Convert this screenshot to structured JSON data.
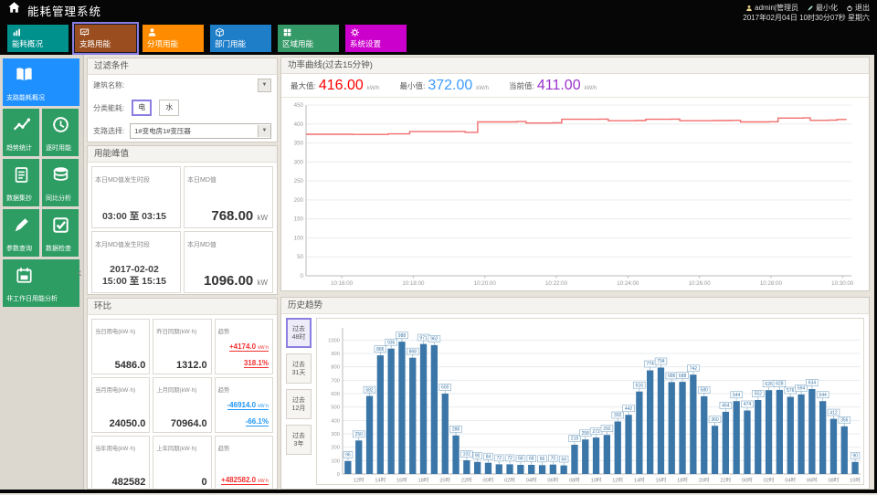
{
  "header": {
    "title": "能耗管理系统",
    "user": "admin|管理员",
    "minimize": "最小化",
    "logout": "退出",
    "datetime": "2017年02月04日 10时30分07秒 星期六"
  },
  "tabs": [
    {
      "name": "tab-energy-overview",
      "label": "能耗概况",
      "color": "#00918D",
      "icon": "bar-chart-icon",
      "selected": false
    },
    {
      "name": "tab-branch-energy",
      "label": "支路用能",
      "color": "#9A4D1E",
      "icon": "trend-board-icon",
      "selected": true
    },
    {
      "name": "tab-subitem-energy",
      "label": "分项用能",
      "color": "#FF8C00",
      "icon": "person-icon",
      "selected": false
    },
    {
      "name": "tab-department-energy",
      "label": "部门用能",
      "color": "#1E7EC8",
      "icon": "cube-icon",
      "selected": false
    },
    {
      "name": "tab-region-energy",
      "label": "区域用能",
      "color": "#339966",
      "icon": "grid-icon",
      "selected": false
    },
    {
      "name": "tab-system-settings",
      "label": "系统设置",
      "color": "#CC00CC",
      "icon": "gear-icon",
      "selected": false
    }
  ],
  "sidebar": {
    "items": [
      {
        "name": "sidebar-item-branch-overview",
        "label": "支路能耗概况",
        "icon": "book-icon",
        "wide": true,
        "selected": true
      },
      {
        "name": "sidebar-item-trend-statistics",
        "label": "趋势统计",
        "icon": "trend-line-icon",
        "wide": false,
        "selected": false
      },
      {
        "name": "sidebar-item-hourly-energy",
        "label": "逐时用能",
        "icon": "clock-icon",
        "wide": false,
        "selected": false
      },
      {
        "name": "sidebar-item-meter-reading",
        "label": "数据集抄",
        "icon": "document-icon",
        "wide": false,
        "selected": false
      },
      {
        "name": "sidebar-item-yoy-analysis",
        "label": "同比分析",
        "icon": "database-icon",
        "wide": false,
        "selected": false
      },
      {
        "name": "sidebar-item-parameter-query",
        "label": "参数查询",
        "icon": "pen-icon",
        "wide": false,
        "selected": false
      },
      {
        "name": "sidebar-item-data-check",
        "label": "数据检查",
        "icon": "check-box-icon",
        "wide": false,
        "selected": false
      },
      {
        "name": "sidebar-item-nonworkday-analysis",
        "label": "非工作日用能分析",
        "icon": "calendar-icon",
        "wide": true,
        "selected": false
      }
    ],
    "collapse_glyph": "‹"
  },
  "filter": {
    "title": "过滤条件",
    "building_label": "建筑名称:",
    "building_value": "",
    "category_label": "分类能耗:",
    "category_options": [
      {
        "label": "电",
        "selected": true
      },
      {
        "label": "水",
        "selected": false
      }
    ],
    "branch_label": "支路选择:",
    "branch_value": "1#变电房1#变压器",
    "dropdown_glyph": "▼"
  },
  "peak": {
    "title": "用能峰值",
    "cards": [
      {
        "label": "本日MD值发生时段",
        "type": "time",
        "lines": [
          "03:00 至 03:15"
        ]
      },
      {
        "label": "本日MD值",
        "type": "value",
        "value": "768.00",
        "unit": "kW"
      },
      {
        "label": "本月MD值发生时段",
        "type": "time",
        "lines": [
          "2017-02-02",
          "15:00 至 15:15"
        ]
      },
      {
        "label": "本月MD值",
        "type": "value",
        "value": "1096.00",
        "unit": "kW"
      }
    ]
  },
  "ring": {
    "title": "环比",
    "rows": [
      [
        {
          "type": "value",
          "label": "当日用电(kW·h)",
          "value": "5486.0"
        },
        {
          "type": "value",
          "label": "昨日同期(kW·h)",
          "value": "1312.0"
        },
        {
          "type": "trend",
          "label": "趋势",
          "lines": [
            {
              "text": "+4174.0",
              "unit": "kW·h",
              "dir": "up"
            },
            {
              "text": "318.1%",
              "unit": "",
              "dir": "up"
            }
          ]
        }
      ],
      [
        {
          "type": "value",
          "label": "当月用电(kW·h)",
          "value": "24050.0"
        },
        {
          "type": "value",
          "label": "上月同期(kW·h)",
          "value": "70964.0"
        },
        {
          "type": "trend",
          "label": "趋势",
          "lines": [
            {
              "text": "-46914.0",
              "unit": "kW·h",
              "dir": "down"
            },
            {
              "text": "-66.1%",
              "unit": "",
              "dir": "down"
            }
          ]
        }
      ],
      [
        {
          "type": "value",
          "label": "当年用电(kW·h)",
          "value": "482582"
        },
        {
          "type": "value",
          "label": "上年同期(kW·h)",
          "value": "0"
        },
        {
          "type": "trend",
          "label": "趋势",
          "lines": [
            {
              "text": "+482582.0",
              "unit": "kW·h",
              "dir": "up"
            }
          ]
        }
      ]
    ]
  },
  "history": {
    "title": "历史趋势",
    "range_buttons": [
      {
        "name": "range-past-48h",
        "lines": [
          "过去",
          "48时"
        ],
        "selected": true
      },
      {
        "name": "range-past-31d",
        "lines": [
          "过去",
          "31天"
        ],
        "selected": false
      },
      {
        "name": "range-past-12m",
        "lines": [
          "过去",
          "12月"
        ],
        "selected": false
      },
      {
        "name": "range-past-3y",
        "lines": [
          "过去",
          "3年"
        ],
        "selected": false
      }
    ]
  },
  "chart_data": [
    {
      "type": "line",
      "title": "功率曲线(过去15分钟)",
      "stats": {
        "max_label": "最大值:",
        "max": "416.00",
        "min_label": "最小值:",
        "min": "372.00",
        "current_label": "当前值:",
        "current": "411.00",
        "unit": "kW/h"
      },
      "line_color": "#F26D6D",
      "ylim": [
        0,
        450
      ],
      "y_tick_step": 50,
      "x_range_minutes": [
        0,
        15.25
      ],
      "x_ticks": {
        "positions": [
          1,
          3,
          5,
          7,
          9,
          11,
          13,
          15
        ],
        "labels": [
          "10:16:00",
          "10:18:00",
          "10:20:00",
          "10:22:00",
          "10:24:00",
          "10:26:00",
          "10:28:00",
          "10:30:00"
        ]
      },
      "grid": true,
      "legend": "none",
      "series": [
        {
          "name": "功率",
          "steps": [
            [
              0,
              373
            ],
            [
              1.3,
              372.5
            ],
            [
              2.3,
              374
            ],
            [
              2.9,
              380
            ],
            [
              4.1,
              380.5
            ],
            [
              4.45,
              378
            ],
            [
              4.8,
              405.5
            ],
            [
              5.9,
              406.5
            ],
            [
              6.15,
              402.5
            ],
            [
              6.9,
              403
            ],
            [
              7.15,
              412.5
            ],
            [
              8.2,
              413
            ],
            [
              8.45,
              408.5
            ],
            [
              9.2,
              409
            ],
            [
              9.5,
              412.5
            ],
            [
              10.2,
              413
            ],
            [
              10.45,
              408.5
            ],
            [
              11.4,
              409
            ],
            [
              11.9,
              409.5
            ],
            [
              12.15,
              405.5
            ],
            [
              12.95,
              406
            ],
            [
              13.2,
              415.5
            ],
            [
              13.9,
              416
            ],
            [
              14.1,
              409.5
            ],
            [
              14.6,
              410
            ],
            [
              14.85,
              412
            ],
            [
              15.1,
              411
            ]
          ]
        }
      ]
    },
    {
      "type": "bar",
      "title": "历史趋势(过去48时)",
      "bar_color": "#3B76A8",
      "label_box_border": "#8FB3CE",
      "ylim": [
        0,
        1050
      ],
      "y_ticks": [
        0,
        100,
        200,
        300,
        400,
        500,
        600,
        700,
        800,
        900,
        1000
      ],
      "tick_label_every": 2,
      "categories": [
        "11时",
        "12时",
        "13时",
        "14时",
        "15时",
        "16时",
        "17时",
        "18时",
        "19时",
        "20时",
        "21时",
        "22时",
        "23时",
        "00时",
        "01时",
        "02时",
        "03时",
        "04时",
        "05时",
        "06时",
        "07时",
        "08时",
        "09时",
        "10时",
        "11时",
        "12时",
        "13时",
        "14时",
        "15时",
        "16时",
        "17时",
        "18时",
        "19时",
        "20时",
        "21时",
        "22时",
        "23时",
        "00时",
        "01时",
        "02时",
        "03时",
        "04时",
        "05时",
        "06时",
        "07时",
        "08时",
        "09时",
        "10时"
      ],
      "values": [
        96,
        250,
        582,
        886,
        936,
        988,
        868,
        971,
        962,
        600,
        288,
        102,
        90,
        84,
        72,
        72,
        68,
        68,
        66,
        70,
        64,
        218,
        258,
        272,
        292,
        392,
        442,
        616,
        774,
        794,
        686,
        688,
        742,
        580,
        360,
        464,
        544,
        474,
        552,
        626,
        628,
        576,
        594,
        634,
        544,
        412,
        356,
        90
      ]
    }
  ]
}
